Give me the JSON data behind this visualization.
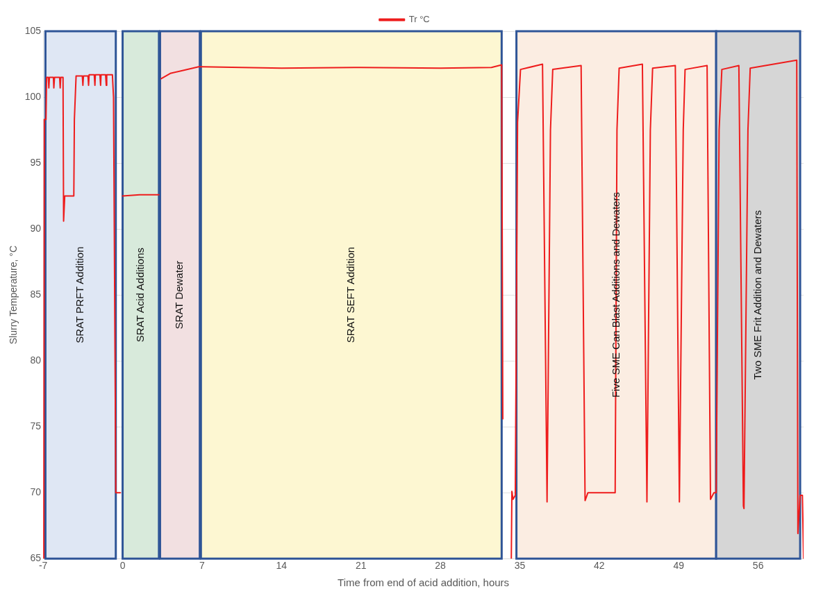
{
  "chart_data": {
    "type": "line",
    "xlabel": "Time from end of acid addition, hours",
    "ylabel": "Slurry Temperature, °C",
    "xlim": [
      -7,
      60
    ],
    "xticks": [
      -7,
      0,
      7,
      14,
      21,
      28,
      35,
      42,
      49,
      56
    ],
    "ylim": [
      65,
      105
    ],
    "yticks": [
      65,
      70,
      75,
      80,
      85,
      90,
      95,
      100,
      105
    ],
    "grid": true,
    "legend": "top",
    "marker": "none",
    "line_style": "solid",
    "bands": [
      {
        "axis": "x",
        "from": -6.8,
        "to": -0.6,
        "label": "SRAT PRFT Addition",
        "color": "#dfe7f4"
      },
      {
        "axis": "x",
        "from": 0,
        "to": 3.2,
        "label": "SRAT Acid Additions",
        "color": "#d8eadb"
      },
      {
        "axis": "x",
        "from": 3.3,
        "to": 6.8,
        "label": "SRAT Dewater",
        "color": "#f2e0e1"
      },
      {
        "axis": "x",
        "from": 6.9,
        "to": 33.4,
        "label": "SRAT SEFT Addition",
        "color": "#fdf7d2"
      },
      {
        "axis": "x",
        "from": 34.7,
        "to": 52.3,
        "label": "Five SME Can Blast Additions and Dewaters",
        "color": "#fbede2"
      },
      {
        "axis": "x",
        "from": 52.3,
        "to": 59.7,
        "label": "Two SME Frit Addition and Dewaters",
        "color": "#d6d6d6"
      }
    ],
    "series": [
      {
        "name": "Tr °C",
        "color": "#ee1c1c",
        "x": [
          -6.95,
          -6.9,
          -6.75,
          -6.7,
          -6.55,
          -6.5,
          -6.45,
          -6.1,
          -6.06,
          -6.0,
          -5.55,
          -5.5,
          -5.45,
          -5.3,
          -5.25,
          -5.2,
          -5.1,
          -4.3,
          -4.25,
          -4.1,
          -3.55,
          -3.5,
          -3.45,
          -3.05,
          -3.0,
          -2.95,
          -2.5,
          -2.44,
          -2.4,
          -2.0,
          -1.94,
          -1.9,
          -1.5,
          -1.44,
          -1.4,
          -0.9,
          -0.8,
          -0.6,
          -0.5,
          -0.2,
          -0.1,
          0,
          1.5,
          3.2,
          3.3,
          3.4,
          4.2,
          5.2,
          6.7,
          7,
          14,
          21,
          28,
          32.5,
          33.4,
          33.5,
          33.6,
          34.25,
          34.3,
          34.4,
          34.6,
          34.8,
          35.06,
          37.0,
          37.4,
          37.7,
          37.9,
          40.4,
          40.75,
          41.0,
          43.4,
          43.56,
          43.75,
          45.8,
          46.2,
          46.5,
          46.7,
          48.7,
          49.06,
          49.4,
          49.56,
          51.5,
          51.8,
          52.1,
          52.3,
          52.56,
          52.8,
          54.3,
          54.7,
          54.75,
          55.1,
          55.3,
          59.4,
          59.5,
          59.7,
          59.9,
          60
        ],
        "values": [
          65,
          98.3,
          98.3,
          101.5,
          101.5,
          100.7,
          101.5,
          101.5,
          100.7,
          101.5,
          101.5,
          100.7,
          101.5,
          101.5,
          101.5,
          90.6,
          92.5,
          92.5,
          98.3,
          101.6,
          101.6,
          100.9,
          101.6,
          101.6,
          100.9,
          101.7,
          101.7,
          100.9,
          101.7,
          101.7,
          100.9,
          101.7,
          101.7,
          100.9,
          101.7,
          101.7,
          100,
          70,
          70,
          70,
          null,
          92.5,
          92.6,
          92.6,
          null,
          101.4,
          101.8,
          102.0,
          102.3,
          102.3,
          102.2,
          102.25,
          102.2,
          102.25,
          102.45,
          75.6,
          null,
          65,
          70.1,
          69.5,
          69.8,
          98.1,
          102.1,
          102.5,
          69.3,
          97.5,
          102.1,
          102.4,
          69.4,
          70,
          70,
          97.5,
          102.2,
          102.5,
          69.3,
          97.5,
          102.2,
          102.4,
          69.3,
          97.5,
          102.1,
          102.4,
          69.5,
          70,
          70,
          97.5,
          102.1,
          102.4,
          69,
          68.8,
          97.5,
          102.2,
          102.8,
          66.9,
          69.8,
          69.8,
          65
        ]
      }
    ]
  }
}
